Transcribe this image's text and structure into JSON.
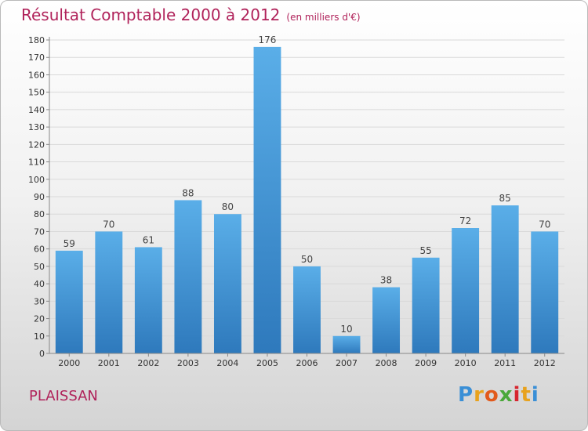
{
  "chart_data": {
    "type": "bar",
    "title": "Résultat Comptable 2000 à 2012",
    "unit_label": "(en milliers d'€)",
    "categories": [
      "2000",
      "2001",
      "2002",
      "2003",
      "2004",
      "2005",
      "2006",
      "2007",
      "2008",
      "2009",
      "2010",
      "2011",
      "2012"
    ],
    "values": [
      59,
      70,
      61,
      88,
      80,
      176,
      50,
      10,
      38,
      55,
      72,
      85,
      70
    ],
    "ylim": [
      0,
      180
    ],
    "ytick_step": 10,
    "xlabel": "",
    "ylabel": "",
    "grid": true,
    "bar_color_top": "#5aaee8",
    "bar_color_bottom": "#2e79bc"
  },
  "footer": {
    "commune": "PLAISSAN",
    "logo": "Proxiti",
    "logo_colors": [
      "#3a8fd6",
      "#e8a21d",
      "#e25a1c",
      "#4aa83a",
      "#d7262f",
      "#e8a21d",
      "#3a8fd6"
    ]
  },
  "colors": {
    "accent": "#b0225a",
    "grid": "#d9d9d9",
    "axis": "#888888"
  }
}
